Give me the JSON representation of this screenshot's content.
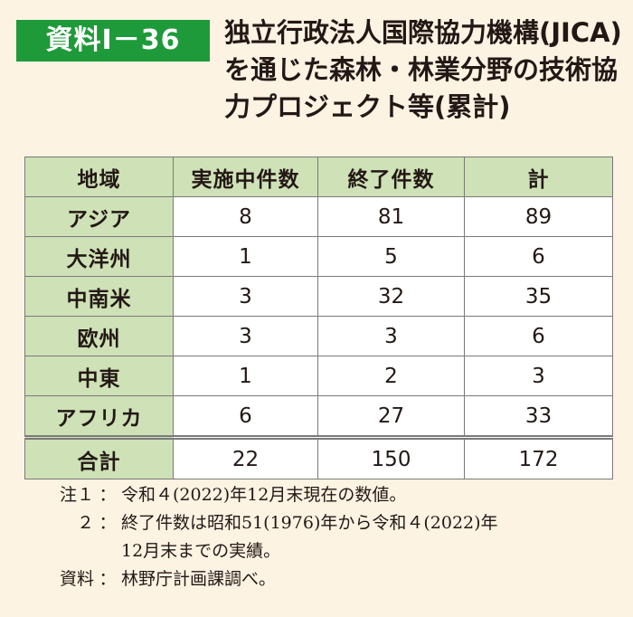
{
  "header": {
    "badge": "資料Ⅰ－36",
    "title_lines": [
      "独立行政法人国際協力機構(JICA)",
      "を通じた森林・林業分野の技術協",
      "力プロジェクト等(累計)"
    ]
  },
  "table": {
    "columns": [
      "地域",
      "実施中件数",
      "終了件数",
      "計"
    ],
    "rows": [
      {
        "region": "アジア",
        "ongoing": "8",
        "completed": "81",
        "total": "89"
      },
      {
        "region": "大洋州",
        "ongoing": "1",
        "completed": "5",
        "total": "6"
      },
      {
        "region": "中南米",
        "ongoing": "3",
        "completed": "32",
        "total": "35"
      },
      {
        "region": "欧州",
        "ongoing": "3",
        "completed": "3",
        "total": "6"
      },
      {
        "region": "中東",
        "ongoing": "1",
        "completed": "2",
        "total": "3"
      },
      {
        "region": "アフリカ",
        "ongoing": "6",
        "completed": "27",
        "total": "33"
      }
    ],
    "total_row": {
      "region": "合計",
      "ongoing": "22",
      "completed": "150",
      "total": "172"
    }
  },
  "notes": {
    "note1_label": "注１",
    "separator": "：",
    "note1_text": "令和４(2022)年12月末現在の数値。",
    "note2_label": "２",
    "note2_text_line1": "終了件数は昭和51(1976)年から令和４(2022)年",
    "note2_text_line2": "12月末までの実績。",
    "source_label": "資料",
    "source_text": "林野庁計画課調べ。"
  },
  "colors": {
    "badge_bg": "#1f9a3a",
    "header_cell_bg": "#cfe1b6",
    "page_bg": "#fdf3e2"
  }
}
